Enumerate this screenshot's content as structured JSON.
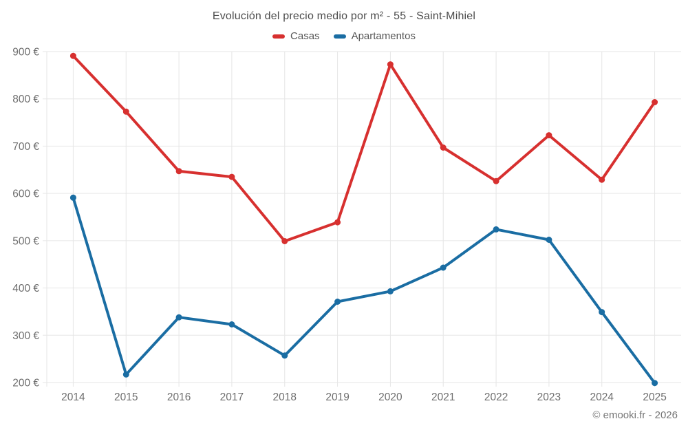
{
  "chart_data": {
    "type": "line",
    "title": "Evolución del precio medio por m² - 55 - Saint-Mihiel",
    "xlabel": "",
    "ylabel": "",
    "categories": [
      "2014",
      "2015",
      "2016",
      "2017",
      "2018",
      "2019",
      "2020",
      "2021",
      "2022",
      "2023",
      "2024",
      "2025"
    ],
    "series": [
      {
        "name": "Casas",
        "color": "#d7302f",
        "values": [
          891,
          773,
          647,
          635,
          499,
          539,
          873,
          697,
          626,
          723,
          629,
          793
        ]
      },
      {
        "name": "Apartamentos",
        "color": "#1a6da3",
        "values": [
          591,
          217,
          338,
          323,
          257,
          371,
          393,
          443,
          524,
          502,
          349,
          199
        ]
      }
    ],
    "ylim": [
      200,
      900
    ],
    "y_ticks": [
      {
        "value": 200,
        "label": "200 €"
      },
      {
        "value": 300,
        "label": "300 €"
      },
      {
        "value": 400,
        "label": "400 €"
      },
      {
        "value": 500,
        "label": "500 €"
      },
      {
        "value": 600,
        "label": "600 €"
      },
      {
        "value": 700,
        "label": "700 €"
      },
      {
        "value": 800,
        "label": "800 €"
      },
      {
        "value": 900,
        "label": "900 €"
      }
    ],
    "grid": true,
    "legend_position": "top",
    "colors": {
      "grid": "#e6e6e6",
      "axis_text": "#6e6e6e",
      "title_text": "#4c4c4c",
      "footer_text": "#757575"
    }
  },
  "footer": {
    "copyright": "© emooki.fr - 2026"
  }
}
